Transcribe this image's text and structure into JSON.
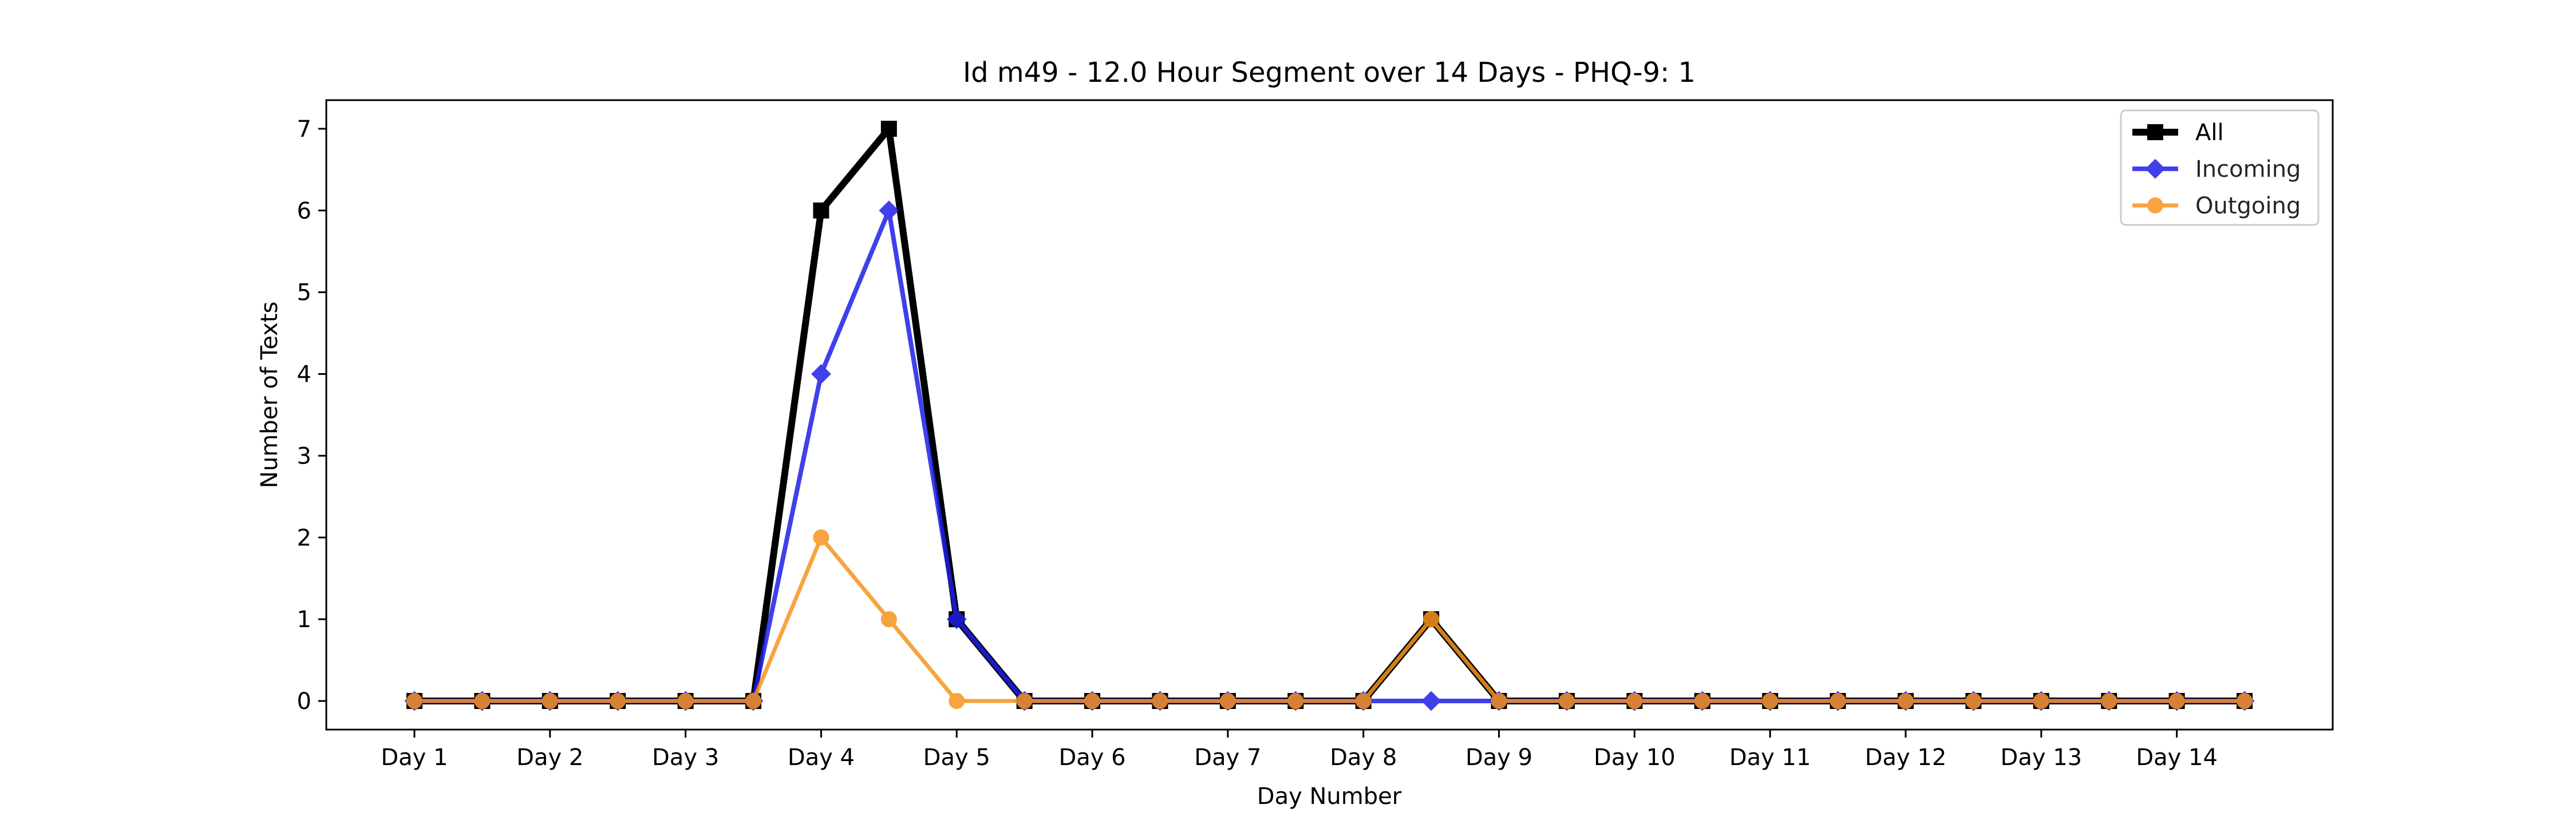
{
  "chart_data": {
    "type": "line",
    "title": "Id m49 - 12.0 Hour Segment over 14 Days - PHQ-9: 1",
    "xlabel": "Day Number",
    "ylabel": "Number of Texts",
    "x": [
      1,
      1.5,
      2,
      2.5,
      3,
      3.5,
      4,
      4.5,
      5,
      5.5,
      6,
      6.5,
      7,
      7.5,
      8,
      8.5,
      9,
      9.5,
      10,
      10.5,
      11,
      11.5,
      12,
      12.5,
      13,
      13.5,
      14,
      14.5
    ],
    "xticks": [
      1,
      2,
      3,
      4,
      5,
      6,
      7,
      8,
      9,
      10,
      11,
      12,
      13,
      14
    ],
    "xtick_labels": [
      "Day 1",
      "Day 2",
      "Day 3",
      "Day 4",
      "Day 5",
      "Day 6",
      "Day 7",
      "Day 8",
      "Day 9",
      "Day 10",
      "Day 11",
      "Day 12",
      "Day 13",
      "Day 14"
    ],
    "yticks": [
      0,
      1,
      2,
      3,
      4,
      5,
      6,
      7
    ],
    "ytick_labels": [
      "0",
      "1",
      "2",
      "3",
      "4",
      "5",
      "6",
      "7"
    ],
    "xlim": [
      0.35,
      15.15
    ],
    "ylim": [
      -0.35,
      7.35
    ],
    "grid": false,
    "legend_position": "top-right",
    "series": [
      {
        "name": "All",
        "color": "#000000",
        "marker": "square",
        "values": [
          0,
          0,
          0,
          0,
          0,
          0,
          6,
          7,
          1,
          0,
          0,
          0,
          0,
          0,
          0,
          1,
          0,
          0,
          0,
          0,
          0,
          0,
          0,
          0,
          0,
          0,
          0,
          0
        ]
      },
      {
        "name": "Incoming",
        "color": "#1f1fe8",
        "marker": "diamond",
        "values": [
          0,
          0,
          0,
          0,
          0,
          0,
          4,
          6,
          1,
          0,
          0,
          0,
          0,
          0,
          0,
          0,
          0,
          0,
          0,
          0,
          0,
          0,
          0,
          0,
          0,
          0,
          0,
          0
        ]
      },
      {
        "name": "Outgoing",
        "color": "#f7941d",
        "marker": "circle",
        "values": [
          0,
          0,
          0,
          0,
          0,
          0,
          2,
          1,
          0,
          0,
          0,
          0,
          0,
          0,
          0,
          1,
          0,
          0,
          0,
          0,
          0,
          0,
          0,
          0,
          0,
          0,
          0,
          0
        ]
      }
    ]
  }
}
